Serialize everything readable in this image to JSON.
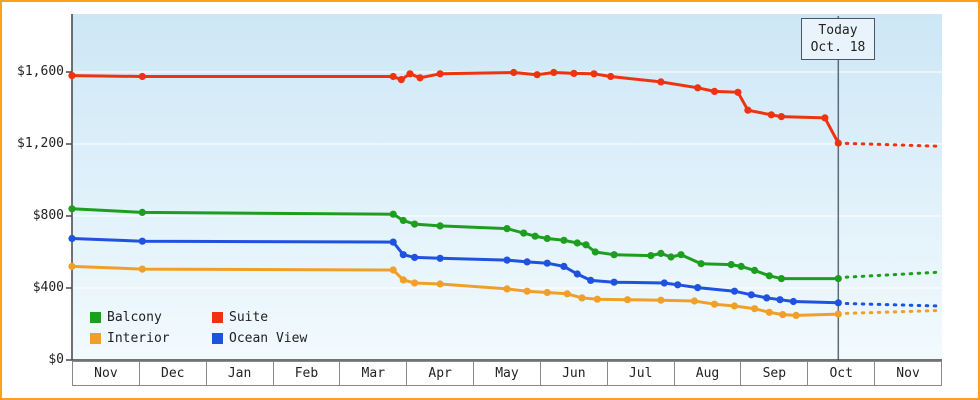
{
  "colors": {
    "frame_border": "#ffa01e",
    "plot_top": "#cde7f6",
    "plot_bottom": "#f2fafe",
    "axis": "#444444",
    "grid": "#ffffff",
    "today_line": "#5a6b7a"
  },
  "chart_data": {
    "type": "line",
    "months": [
      "Nov",
      "Dec",
      "Jan",
      "Feb",
      "Mar",
      "Apr",
      "May",
      "Jun",
      "Jul",
      "Aug",
      "Sep",
      "Oct",
      "Nov"
    ],
    "ytick_labels": [
      "$1,600",
      "$1,200",
      "$800",
      "$400",
      "$0"
    ],
    "ytick_values": [
      1600,
      1200,
      800,
      400,
      0
    ],
    "ylim": [
      0,
      1600
    ],
    "x_unit": "month",
    "today_marker": {
      "label_line1": "Today",
      "label_line2": "Oct. 18",
      "month_position": 11.45
    },
    "series": [
      {
        "name": "Balcony",
        "color": "#1e9e1e",
        "solid": [
          [
            0,
            840
          ],
          [
            1.05,
            820
          ],
          [
            4.8,
            810
          ],
          [
            4.95,
            775
          ],
          [
            5.12,
            755
          ],
          [
            5.5,
            745
          ],
          [
            6.5,
            730
          ],
          [
            6.75,
            705
          ],
          [
            6.92,
            688
          ],
          [
            7.1,
            675
          ],
          [
            7.35,
            665
          ],
          [
            7.55,
            650
          ],
          [
            7.68,
            640
          ],
          [
            7.82,
            600
          ],
          [
            8.1,
            585
          ],
          [
            8.65,
            580
          ],
          [
            8.8,
            592
          ],
          [
            8.95,
            572
          ],
          [
            9.1,
            585
          ],
          [
            9.4,
            535
          ],
          [
            9.85,
            530
          ],
          [
            10.0,
            520
          ],
          [
            10.2,
            498
          ],
          [
            10.42,
            468
          ],
          [
            10.6,
            452
          ],
          [
            11.45,
            452
          ]
        ],
        "projection": [
          [
            11.45,
            458
          ],
          [
            12.95,
            488
          ]
        ]
      },
      {
        "name": "Suite",
        "color": "#ee3311",
        "solid": [
          [
            0,
            1580
          ],
          [
            1.05,
            1575
          ],
          [
            4.8,
            1575
          ],
          [
            4.92,
            1558
          ],
          [
            5.05,
            1590
          ],
          [
            5.2,
            1568
          ],
          [
            5.5,
            1590
          ],
          [
            6.6,
            1597
          ],
          [
            6.95,
            1585
          ],
          [
            7.2,
            1597
          ],
          [
            7.5,
            1592
          ],
          [
            7.8,
            1590
          ],
          [
            8.05,
            1575
          ],
          [
            8.8,
            1545
          ],
          [
            9.35,
            1512
          ],
          [
            9.6,
            1492
          ],
          [
            9.95,
            1487
          ],
          [
            10.1,
            1388
          ],
          [
            10.45,
            1362
          ],
          [
            10.6,
            1352
          ],
          [
            11.25,
            1345
          ],
          [
            11.45,
            1205
          ]
        ],
        "projection": [
          [
            11.45,
            1205
          ],
          [
            12.95,
            1188
          ]
        ]
      },
      {
        "name": "Interior",
        "color": "#f0a028",
        "solid": [
          [
            0,
            520
          ],
          [
            1.05,
            505
          ],
          [
            4.8,
            500
          ],
          [
            4.95,
            445
          ],
          [
            5.12,
            428
          ],
          [
            5.5,
            422
          ],
          [
            6.5,
            395
          ],
          [
            6.8,
            382
          ],
          [
            7.1,
            375
          ],
          [
            7.4,
            368
          ],
          [
            7.62,
            345
          ],
          [
            7.85,
            338
          ],
          [
            8.3,
            335
          ],
          [
            8.8,
            332
          ],
          [
            9.3,
            328
          ],
          [
            9.6,
            310
          ],
          [
            9.9,
            300
          ],
          [
            10.2,
            285
          ],
          [
            10.42,
            265
          ],
          [
            10.62,
            252
          ],
          [
            10.82,
            248
          ],
          [
            11.45,
            255
          ]
        ],
        "projection": [
          [
            11.45,
            258
          ],
          [
            12.95,
            275
          ]
        ]
      },
      {
        "name": "Ocean View",
        "color": "#2052e0",
        "solid": [
          [
            0,
            675
          ],
          [
            1.05,
            660
          ],
          [
            4.8,
            655
          ],
          [
            4.95,
            585
          ],
          [
            5.12,
            570
          ],
          [
            5.5,
            565
          ],
          [
            6.5,
            555
          ],
          [
            6.8,
            545
          ],
          [
            7.1,
            538
          ],
          [
            7.35,
            520
          ],
          [
            7.55,
            478
          ],
          [
            7.75,
            442
          ],
          [
            8.1,
            432
          ],
          [
            8.85,
            428
          ],
          [
            9.05,
            418
          ],
          [
            9.35,
            402
          ],
          [
            9.9,
            382
          ],
          [
            10.15,
            362
          ],
          [
            10.38,
            345
          ],
          [
            10.58,
            335
          ],
          [
            10.78,
            325
          ],
          [
            11.45,
            318
          ]
        ],
        "projection": [
          [
            11.45,
            315
          ],
          [
            12.95,
            300
          ]
        ]
      }
    ]
  }
}
